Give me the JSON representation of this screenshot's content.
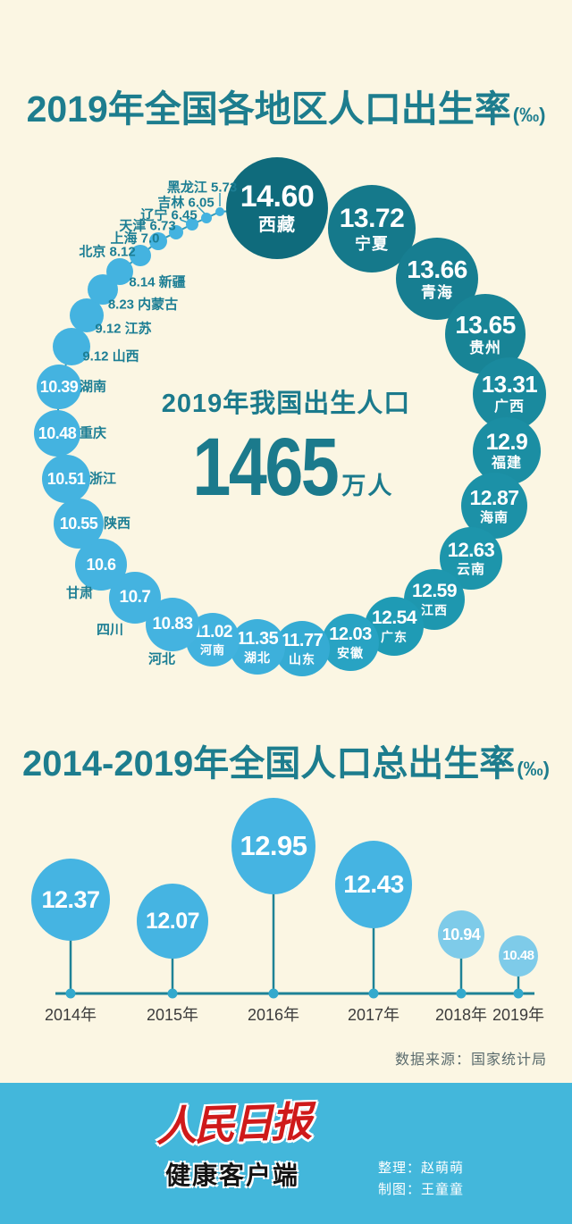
{
  "colors": {
    "background": "#fbf6e3",
    "title_teal": "#1d7d8e",
    "bubble_dark_teal": "#0f6b7c",
    "bubble_light_blue": "#44b3e0",
    "bubble_pale_blue": "#7ecbe9",
    "axis_teal": "#1e8296",
    "footer_blue": "#43b7db",
    "brand_red": "#cf1a1a"
  },
  "chart1": {
    "title": "2019年全国各地区人口出生率",
    "unit": "(‰)",
    "center_caption": "2019年我国出生人口",
    "center_number": "1465",
    "center_unit": "万人"
  },
  "chart2": {
    "title": "2014-2019年全国人口总出生率",
    "unit": "(‰)"
  },
  "source_note": "数据来源：国家统计局",
  "footer": {
    "brand_title": "人民日报",
    "brand_subtitle": "健康客户端",
    "credit_compile": "整理：赵萌萌",
    "credit_design": "制图：王童童"
  },
  "chart_data": [
    {
      "type": "bubble",
      "title": "2019年全国各地区人口出生率(‰)",
      "unit": "‰",
      "layout_hint": "bubbles arranged in a ring, size encodes value, dark teal = high, light blue = low",
      "center_annotation": {
        "text": "2019年我国出生人口",
        "display": "1465万人",
        "value_wan": 1465
      },
      "points": [
        {
          "label": "西藏",
          "value": 14.6,
          "display": "14.60"
        },
        {
          "label": "宁夏",
          "value": 13.72,
          "display": "13.72"
        },
        {
          "label": "青海",
          "value": 13.66,
          "display": "13.66"
        },
        {
          "label": "贵州",
          "value": 13.65,
          "display": "13.65"
        },
        {
          "label": "广西",
          "value": 13.31,
          "display": "13.31"
        },
        {
          "label": "福建",
          "value": 12.9,
          "display": "12.9"
        },
        {
          "label": "海南",
          "value": 12.87,
          "display": "12.87"
        },
        {
          "label": "云南",
          "value": 12.63,
          "display": "12.63"
        },
        {
          "label": "江西",
          "value": 12.59,
          "display": "12.59"
        },
        {
          "label": "广东",
          "value": 12.54,
          "display": "12.54"
        },
        {
          "label": "安徽",
          "value": 12.03,
          "display": "12.03"
        },
        {
          "label": "山东",
          "value": 11.77,
          "display": "11.77"
        },
        {
          "label": "湖北",
          "value": 11.35,
          "display": "11.35"
        },
        {
          "label": "河南",
          "value": 11.02,
          "display": "11.02"
        },
        {
          "label": "河北",
          "value": 10.83,
          "display": "10.83"
        },
        {
          "label": "四川",
          "value": 10.7,
          "display": "10.7"
        },
        {
          "label": "甘肃",
          "value": 10.6,
          "display": "10.6"
        },
        {
          "label": "陕西",
          "value": 10.55,
          "display": "10.55"
        },
        {
          "label": "浙江",
          "value": 10.51,
          "display": "10.51"
        },
        {
          "label": "重庆",
          "value": 10.48,
          "display": "10.48"
        },
        {
          "label": "湖南",
          "value": 10.39,
          "display": "10.39"
        },
        {
          "label": "山西",
          "value": 9.12,
          "display": "9.12"
        },
        {
          "label": "江苏",
          "value": 9.12,
          "display": "9.12"
        },
        {
          "label": "内蒙古",
          "value": 8.23,
          "display": "8.23"
        },
        {
          "label": "新疆",
          "value": 8.14,
          "display": "8.14"
        },
        {
          "label": "北京",
          "value": 8.12,
          "display": "8.12"
        },
        {
          "label": "上海",
          "value": 7.0,
          "display": "7.0"
        },
        {
          "label": "天津",
          "value": 6.73,
          "display": "6.73"
        },
        {
          "label": "辽宁",
          "value": 6.45,
          "display": "6.45"
        },
        {
          "label": "吉林",
          "value": 6.05,
          "display": "6.05"
        },
        {
          "label": "黑龙江",
          "value": 5.73,
          "display": "5.73"
        }
      ]
    },
    {
      "type": "bubble",
      "title": "2014-2019年全国人口总出生率(‰)",
      "unit": "‰",
      "layout_hint": "balloon bubbles on stems above a horizontal timeline axis",
      "categories": [
        "2014年",
        "2015年",
        "2016年",
        "2017年",
        "2018年",
        "2019年"
      ],
      "values": [
        12.37,
        12.07,
        12.95,
        12.43,
        10.94,
        10.48
      ],
      "displays": [
        "12.37",
        "12.07",
        "12.95",
        "12.43",
        "10.94",
        "10.48"
      ]
    }
  ]
}
